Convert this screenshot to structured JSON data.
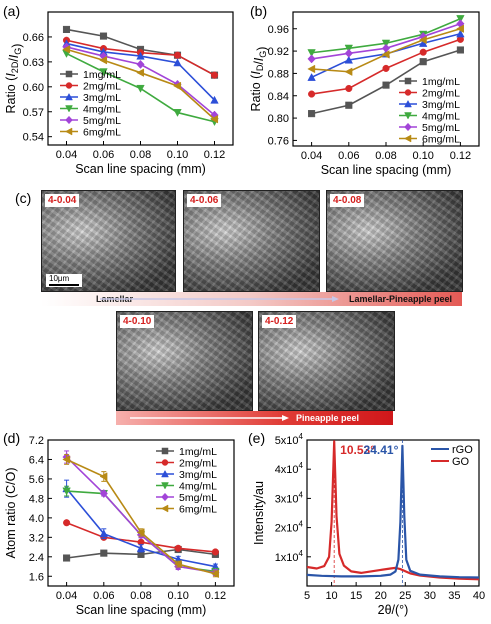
{
  "panels": {
    "a": "(a)",
    "b": "(b)",
    "c": "(c)",
    "d": "(d)",
    "e": "(e)"
  },
  "chart_data": [
    {
      "panel": "a",
      "type": "line",
      "xlabel": "Scan line spacing (mm)",
      "ylabel": "Ratio (I2D/IG)",
      "ylabel_parts": {
        "prefix": "Ratio (",
        "i1": "I",
        "s1": "2D",
        "slash": "/",
        "i2": "I",
        "s2": "G",
        "suffix": ")"
      },
      "x": [
        0.04,
        0.06,
        0.08,
        0.1,
        0.12
      ],
      "xlim": [
        0.03,
        0.13
      ],
      "ylim": [
        0.53,
        0.69
      ],
      "xticks": [
        "0.04",
        "0.06",
        "0.08",
        "0.10",
        "0.12"
      ],
      "yticks": [
        "0.54",
        "0.57",
        "0.60",
        "0.63",
        "0.66"
      ],
      "legend_pos": "bottom-left",
      "series": [
        {
          "name": "1mg/mL",
          "color": "#555555",
          "marker": "square",
          "values": [
            0.669,
            0.661,
            0.645,
            0.638,
            0.614
          ]
        },
        {
          "name": "2mg/mL",
          "color": "#d62a2a",
          "marker": "circle",
          "values": [
            0.656,
            0.646,
            0.641,
            0.638,
            0.614
          ]
        },
        {
          "name": "3mg/mL",
          "color": "#2c4fd8",
          "marker": "triangle-up",
          "values": [
            0.652,
            0.642,
            0.637,
            0.629,
            0.584
          ]
        },
        {
          "name": "4mg/mL",
          "color": "#3faa3f",
          "marker": "triangle-down",
          "values": [
            0.64,
            0.618,
            0.598,
            0.569,
            0.558
          ]
        },
        {
          "name": "5mg/mL",
          "color": "#a244d8",
          "marker": "diamond",
          "values": [
            0.648,
            0.637,
            0.627,
            0.603,
            0.566
          ]
        },
        {
          "name": "6mg/mL",
          "color": "#b88a15",
          "marker": "triangle-left",
          "values": [
            0.645,
            0.632,
            0.617,
            0.601,
            0.561
          ]
        }
      ]
    },
    {
      "panel": "b",
      "type": "line",
      "xlabel": "Scan line spacing (mm)",
      "ylabel": "Ratio (ID/IG)",
      "ylabel_parts": {
        "prefix": "Ratio (",
        "i1": "I",
        "s1": "D",
        "slash": "/",
        "i2": "I",
        "s2": "G",
        "suffix": ")"
      },
      "x": [
        0.04,
        0.06,
        0.08,
        0.1,
        0.12
      ],
      "xlim": [
        0.03,
        0.13
      ],
      "ylim": [
        0.75,
        0.99
      ],
      "xticks": [
        "0.04",
        "0.06",
        "0.08",
        "0.10",
        "0.12"
      ],
      "yticks": [
        "0.76",
        "0.80",
        "0.84",
        "0.88",
        "0.92",
        "0.96"
      ],
      "legend_pos": "right",
      "series": [
        {
          "name": "1mg/mL",
          "color": "#555555",
          "marker": "square",
          "values": [
            0.808,
            0.823,
            0.859,
            0.901,
            0.922
          ]
        },
        {
          "name": "2mg/mL",
          "color": "#d62a2a",
          "marker": "circle",
          "values": [
            0.843,
            0.853,
            0.889,
            0.918,
            0.941
          ]
        },
        {
          "name": "3mg/mL",
          "color": "#2c4fd8",
          "marker": "triangle-up",
          "values": [
            0.873,
            0.904,
            0.915,
            0.934,
            0.951
          ]
        },
        {
          "name": "4mg/mL",
          "color": "#3faa3f",
          "marker": "triangle-down",
          "values": [
            0.917,
            0.925,
            0.934,
            0.95,
            0.978
          ]
        },
        {
          "name": "5mg/mL",
          "color": "#a244d8",
          "marker": "diamond",
          "values": [
            0.906,
            0.916,
            0.925,
            0.946,
            0.969
          ]
        },
        {
          "name": "6mg/mL",
          "color": "#b88a15",
          "marker": "triangle-left",
          "values": [
            0.888,
            0.883,
            0.914,
            0.94,
            0.96
          ]
        }
      ]
    },
    {
      "panel": "d",
      "type": "line",
      "xlabel": "Scan line spacing (mm)",
      "ylabel": "Atom ratio (C/O)",
      "x": [
        0.04,
        0.06,
        0.08,
        0.1,
        0.12
      ],
      "xlim": [
        0.03,
        0.13
      ],
      "ylim": [
        1.2,
        7.2
      ],
      "xticks": [
        "0.04",
        "0.06",
        "0.08",
        "0.10",
        "0.12"
      ],
      "yticks": [
        "1.6",
        "2.4",
        "3.2",
        "4.0",
        "4.8",
        "5.6",
        "6.4",
        "7.2"
      ],
      "legend_pos": "top-right",
      "series": [
        {
          "name": "1mg/mL",
          "color": "#555555",
          "marker": "square",
          "values": [
            2.35,
            2.55,
            2.5,
            2.7,
            2.5
          ],
          "err": [
            0.08,
            0.06,
            0.06,
            0.06,
            0.06
          ]
        },
        {
          "name": "2mg/mL",
          "color": "#d62a2a",
          "marker": "circle",
          "values": [
            3.8,
            3.2,
            3.0,
            2.75,
            2.6
          ],
          "err": [
            0.08,
            0.08,
            0.08,
            0.08,
            0.08
          ]
        },
        {
          "name": "3mg/mL",
          "color": "#2c4fd8",
          "marker": "triangle-up",
          "values": [
            5.2,
            3.35,
            2.75,
            2.3,
            2.0
          ],
          "err": [
            0.35,
            0.2,
            0.15,
            0.12,
            0.1
          ]
        },
        {
          "name": "4mg/mL",
          "color": "#3faa3f",
          "marker": "triangle-down",
          "values": [
            5.1,
            5.0,
            3.3,
            2.0,
            1.8
          ],
          "err": [
            0.2,
            0.1,
            0.1,
            0.1,
            0.1
          ]
        },
        {
          "name": "5mg/mL",
          "color": "#a244d8",
          "marker": "diamond",
          "values": [
            6.5,
            5.0,
            3.3,
            2.0,
            1.75
          ],
          "err": [
            0.25,
            0.1,
            0.12,
            0.12,
            0.12
          ]
        },
        {
          "name": "6mg/mL",
          "color": "#b88a15",
          "marker": "triangle-left",
          "values": [
            6.4,
            5.7,
            3.4,
            2.1,
            1.7
          ],
          "err": [
            0.2,
            0.2,
            0.15,
            0.12,
            0.12
          ]
        }
      ]
    },
    {
      "panel": "e",
      "type": "line",
      "xlabel": "2θ/(°)",
      "ylabel": "Intensity/au",
      "xlim": [
        5,
        40
      ],
      "ylim": [
        0,
        50000
      ],
      "xticks": [
        "5",
        "10",
        "15",
        "20",
        "25",
        "30",
        "35",
        "40"
      ],
      "ytick_values": [
        10000,
        20000,
        30000,
        40000,
        50000
      ],
      "ytick_labels": [
        {
          "base": "1x10",
          "exp": "4"
        },
        {
          "base": "2x10",
          "exp": "4"
        },
        {
          "base": "3x10",
          "exp": "4"
        },
        {
          "base": "4x10",
          "exp": "4"
        },
        {
          "base": "5x10",
          "exp": "4"
        }
      ],
      "legend_pos": "top-right",
      "annotations": [
        {
          "text": "10.53°",
          "x": 10.53,
          "color": "#d62a2a"
        },
        {
          "text": "24.41°",
          "x": 24.41,
          "color": "#2a55a8"
        }
      ],
      "series": [
        {
          "name": "rGO",
          "color": "#2a55a8",
          "points": [
            [
              5,
              3800
            ],
            [
              8,
              3500
            ],
            [
              12,
              3300
            ],
            [
              16,
              3300
            ],
            [
              20,
              3500
            ],
            [
              22,
              3900
            ],
            [
              23,
              5000
            ],
            [
              23.6,
              9000
            ],
            [
              24,
              22000
            ],
            [
              24.41,
              48000
            ],
            [
              24.8,
              24000
            ],
            [
              25.2,
              9000
            ],
            [
              26,
              5200
            ],
            [
              28,
              3900
            ],
            [
              32,
              3300
            ],
            [
              36,
              3000
            ],
            [
              40,
              2900
            ]
          ]
        },
        {
          "name": "GO",
          "color": "#d62a2a",
          "points": [
            [
              5,
              6500
            ],
            [
              7,
              6000
            ],
            [
              8.5,
              6800
            ],
            [
              9.5,
              10000
            ],
            [
              10,
              22000
            ],
            [
              10.53,
              49500
            ],
            [
              11,
              24000
            ],
            [
              11.6,
              11000
            ],
            [
              12.5,
              7000
            ],
            [
              14,
              5000
            ],
            [
              16,
              4500
            ],
            [
              18,
              5000
            ],
            [
              20,
              5500
            ],
            [
              22,
              6000
            ],
            [
              23,
              6200
            ],
            [
              24,
              5800
            ],
            [
              26,
              4300
            ],
            [
              28,
              3600
            ],
            [
              32,
              2900
            ],
            [
              36,
              2500
            ],
            [
              40,
              2300
            ]
          ]
        }
      ]
    }
  ],
  "sem": {
    "images": [
      {
        "label": "4-0.04"
      },
      {
        "label": "4-0.06"
      },
      {
        "label": "4-0.08"
      },
      {
        "label": "4-0.10"
      },
      {
        "label": "4-0.12"
      }
    ],
    "scalebar": "10μm",
    "band1_left": "Lamellar",
    "band1_right": "Lamellar-Pineapple peel",
    "band2": "Pineapple peel"
  }
}
